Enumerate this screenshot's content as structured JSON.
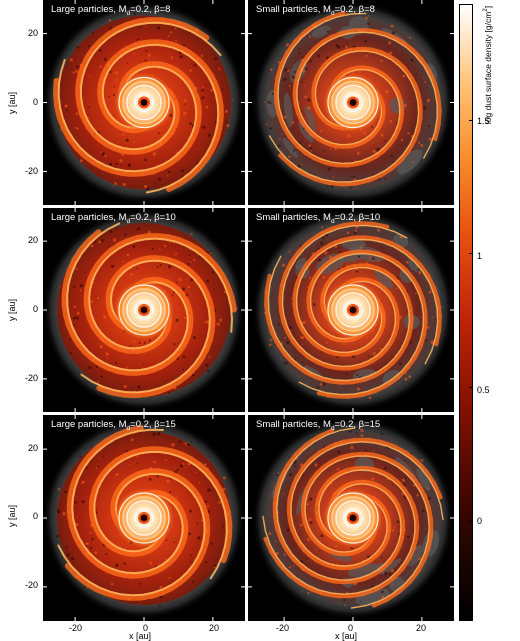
{
  "figure": {
    "panels": [
      {
        "title_prefix": "Large particles, M",
        "title_sub": "d",
        "title_suffix": "=0.2, β=8"
      },
      {
        "title_prefix": "Small particles, M",
        "title_sub": "d",
        "title_suffix": "=0.2, β=8"
      },
      {
        "title_prefix": "Large particles, M",
        "title_sub": "d",
        "title_suffix": "=0.2, β=10"
      },
      {
        "title_prefix": "Small particles, M",
        "title_sub": "d",
        "title_suffix": "=0.2, β=10"
      },
      {
        "title_prefix": "Large particles, M",
        "title_sub": "d",
        "title_suffix": "=0.2, β=15"
      },
      {
        "title_prefix": "Small particles, M",
        "title_sub": "d",
        "title_suffix": "=0.2, β=15"
      }
    ],
    "y_axis_label": "y [au]",
    "x_axis_label": "x [au]",
    "y_ticks": [
      "20",
      "0",
      "-20"
    ],
    "x_ticks": [
      "-20",
      "0",
      "20"
    ],
    "colorbar": {
      "label": "log dust surface density [g/cm",
      "label_sup": "2",
      "label_end": "]",
      "ticks": [
        "1.5",
        "1",
        "0.5",
        "0"
      ],
      "tick_values": [
        1.5,
        1.0,
        0.5,
        0.0
      ],
      "range": [
        -0.38,
        1.93
      ]
    },
    "colors": {
      "background": "#000000",
      "disk_glow": "#8a8a8a",
      "spiral": "#c4260a",
      "core": "#ffffff"
    }
  }
}
